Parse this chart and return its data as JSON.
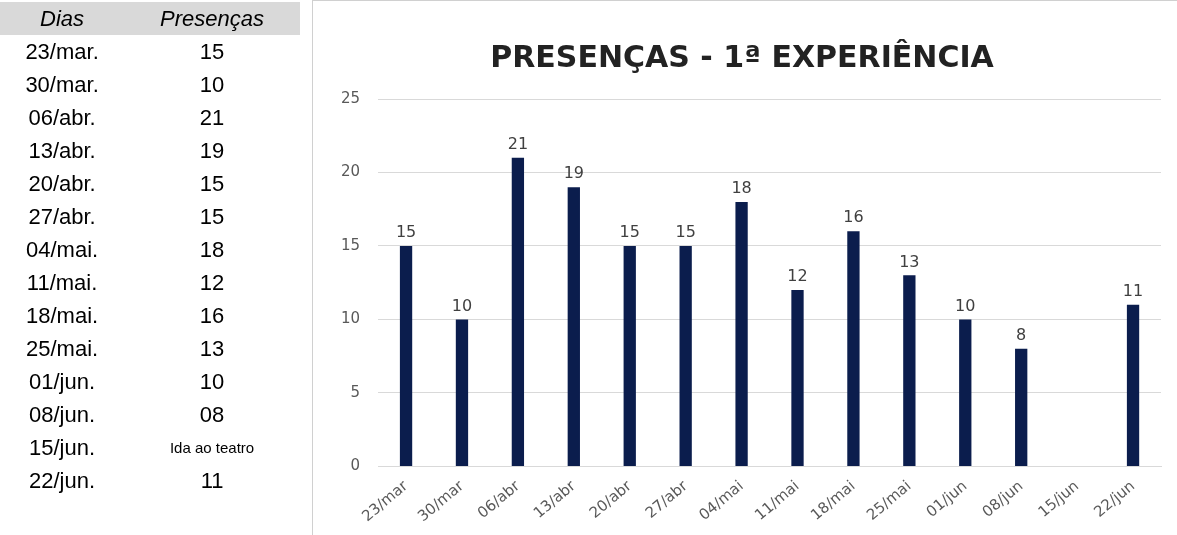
{
  "chart_data": [
    {
      "type": "other",
      "annotations": [
        "Dias",
        "Presenças",
        "23/mar.",
        "15",
        "30/mar.",
        "10",
        "06/abr.",
        "21",
        "13/abr.",
        "19",
        "20/abr.",
        "15",
        "27/abr.",
        "15",
        "04/mai.",
        "18",
        "11/mai.",
        "12",
        "18/mai.",
        "16",
        "25/mai.",
        "13",
        "01/jun.",
        "10",
        "08/jun.",
        "08",
        "15/jun.",
        "Ida ao teatro",
        "22/jun.",
        "11"
      ]
    },
    {
      "type": "bar",
      "title": "PRESENÇAS - 1ª EXPERIÊNCIA",
      "categories": [
        "23/mar",
        "30/mar",
        "06/abr",
        "13/abr",
        "20/abr",
        "27/abr",
        "04/mai",
        "11/mai",
        "18/mai",
        "25/mai",
        "01/jun",
        "08/jun",
        "15/jun",
        "22/jun"
      ],
      "values": [
        15,
        10,
        21,
        19,
        15,
        15,
        18,
        12,
        16,
        13,
        10,
        8,
        null,
        11
      ],
      "color": "#0b1d4d",
      "ylim": [
        0,
        25
      ],
      "yticks": [
        0,
        5,
        10,
        15,
        20,
        25
      ],
      "grid": "y",
      "data_labels": true
    }
  ]
}
